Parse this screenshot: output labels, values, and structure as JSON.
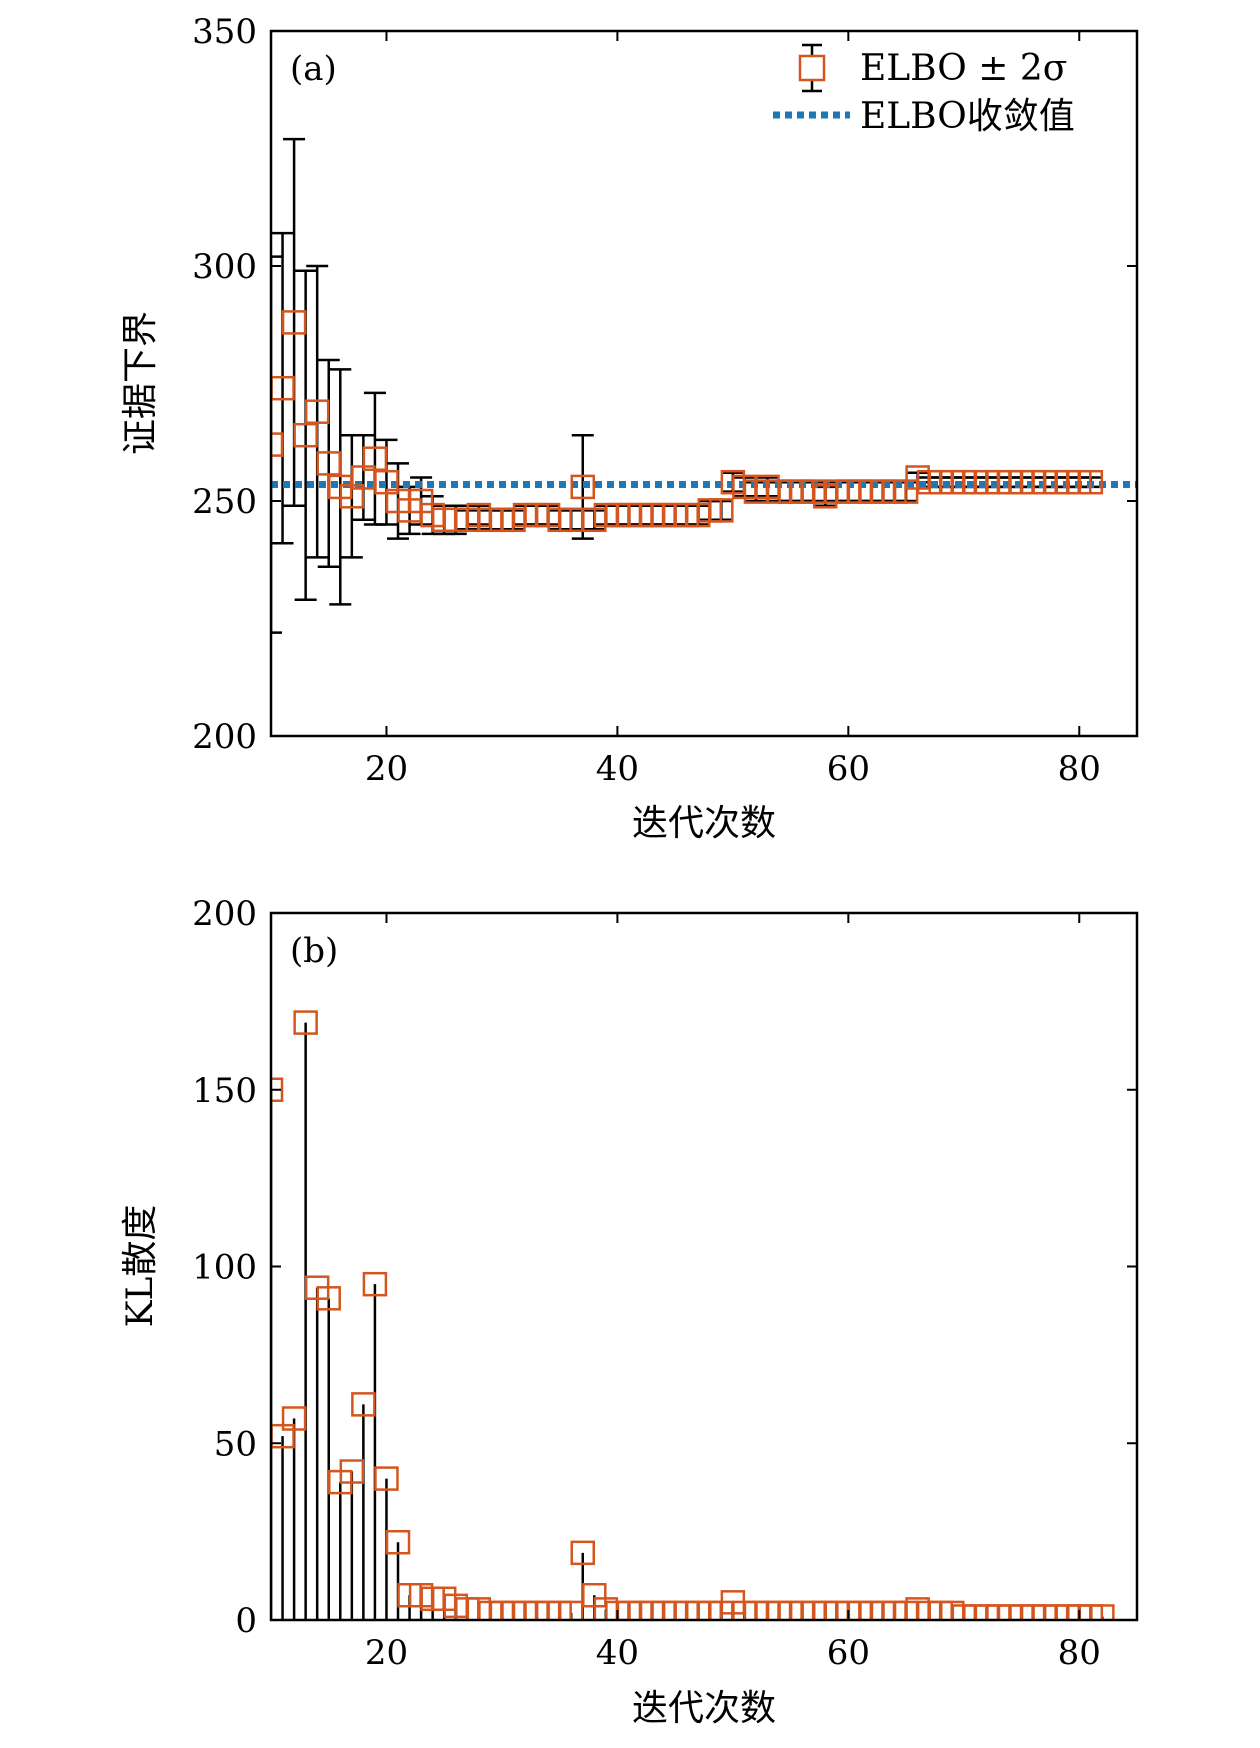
{
  "chart_data": [
    {
      "type": "scatter",
      "panel_label": "(a)",
      "xlabel": "迭代次数",
      "ylabel": "证据下界",
      "xlim": [
        10,
        85
      ],
      "ylim": [
        200,
        350
      ],
      "xticks": [
        20,
        40,
        60,
        80
      ],
      "yticks": [
        200,
        250,
        300,
        350
      ],
      "grid": false,
      "legend_position": "top-right",
      "legend": [
        "ELBO ± 2σ",
        "ELBO收敛值"
      ],
      "colors": {
        "marker": "#d4561e",
        "errorbar": "#000000",
        "reference": "#1f77b4"
      },
      "series": [
        {
          "name": "ELBO ± 2σ",
          "x": [
            10,
            11,
            12,
            13,
            14,
            15,
            16,
            17,
            18,
            19,
            20,
            21,
            22,
            23,
            24,
            25,
            26,
            27,
            28,
            29,
            30,
            31,
            32,
            33,
            34,
            35,
            36,
            37,
            38,
            39,
            40,
            41,
            42,
            43,
            44,
            45,
            46,
            47,
            48,
            49,
            50,
            51,
            52,
            53,
            54,
            55,
            56,
            57,
            58,
            59,
            60,
            61,
            62,
            63,
            64,
            65,
            66,
            67,
            68,
            69,
            70,
            71,
            72,
            73,
            74,
            75,
            76,
            77,
            78,
            79,
            80,
            81
          ],
          "y": [
            262,
            274,
            288,
            264,
            269,
            258,
            253,
            251,
            255,
            259,
            254,
            250,
            248,
            250,
            247,
            246,
            246,
            246,
            247,
            246,
            246,
            246,
            247,
            247,
            247,
            246,
            246,
            253,
            246,
            247,
            247,
            247,
            247,
            247,
            247,
            247,
            247,
            247,
            248,
            248,
            254,
            253,
            252,
            253,
            252,
            252,
            252,
            252,
            251,
            252,
            252,
            252,
            252,
            252,
            252,
            252,
            255,
            254,
            254,
            254,
            254,
            254,
            254,
            254,
            254,
            254,
            254,
            254,
            254,
            254,
            254,
            254
          ],
          "yerr": [
            40,
            33,
            39,
            35,
            31,
            22,
            25,
            13,
            9,
            14,
            9,
            8,
            5,
            5,
            4,
            3,
            3,
            2,
            2,
            2,
            2,
            2,
            2,
            2,
            2,
            2,
            2,
            11,
            2,
            2,
            2,
            2,
            2,
            2,
            2,
            2,
            2,
            2,
            2,
            2,
            2,
            2,
            2,
            2,
            2,
            2,
            2,
            2,
            2,
            2,
            2,
            2,
            2,
            2,
            2,
            2,
            1,
            1,
            1,
            1,
            1,
            1,
            1,
            1,
            1,
            1,
            1,
            1,
            1,
            1,
            1,
            1
          ]
        },
        {
          "name": "ELBO收敛值",
          "type": "hline",
          "y": 253.5
        }
      ]
    },
    {
      "type": "scatter",
      "panel_label": "(b)",
      "xlabel": "迭代次数",
      "ylabel": "KL散度",
      "xlim": [
        10,
        85
      ],
      "ylim": [
        0,
        200
      ],
      "xticks": [
        20,
        40,
        60,
        80
      ],
      "yticks": [
        0,
        50,
        100,
        150,
        200
      ],
      "grid": false,
      "colors": {
        "marker": "#d4561e",
        "stem": "#000000"
      },
      "series": [
        {
          "x": [
            10,
            11,
            12,
            13,
            14,
            15,
            16,
            17,
            18,
            19,
            20,
            21,
            22,
            23,
            24,
            25,
            26,
            27,
            28,
            29,
            30,
            31,
            32,
            33,
            34,
            35,
            36,
            37,
            38,
            39,
            40,
            41,
            42,
            43,
            44,
            45,
            46,
            47,
            48,
            49,
            50,
            51,
            52,
            53,
            54,
            55,
            56,
            57,
            58,
            59,
            60,
            61,
            62,
            63,
            64,
            65,
            66,
            67,
            68,
            69,
            70,
            71,
            72,
            73,
            74,
            75,
            76,
            77,
            78,
            79,
            80,
            81,
            82
          ],
          "y": [
            150,
            52,
            57,
            169,
            94,
            91,
            39,
            42,
            61,
            95,
            40,
            22,
            7,
            7,
            6,
            6,
            4,
            3,
            3,
            2,
            2,
            2,
            2,
            2,
            2,
            2,
            2,
            19,
            7,
            3,
            2,
            2,
            2,
            2,
            2,
            2,
            2,
            2,
            2,
            2,
            5,
            2,
            2,
            2,
            2,
            2,
            2,
            2,
            2,
            2,
            2,
            2,
            2,
            2,
            2,
            2,
            3,
            2,
            2,
            2,
            1,
            1,
            1,
            1,
            1,
            1,
            1,
            1,
            1,
            1,
            1,
            1,
            1
          ]
        }
      ]
    }
  ]
}
